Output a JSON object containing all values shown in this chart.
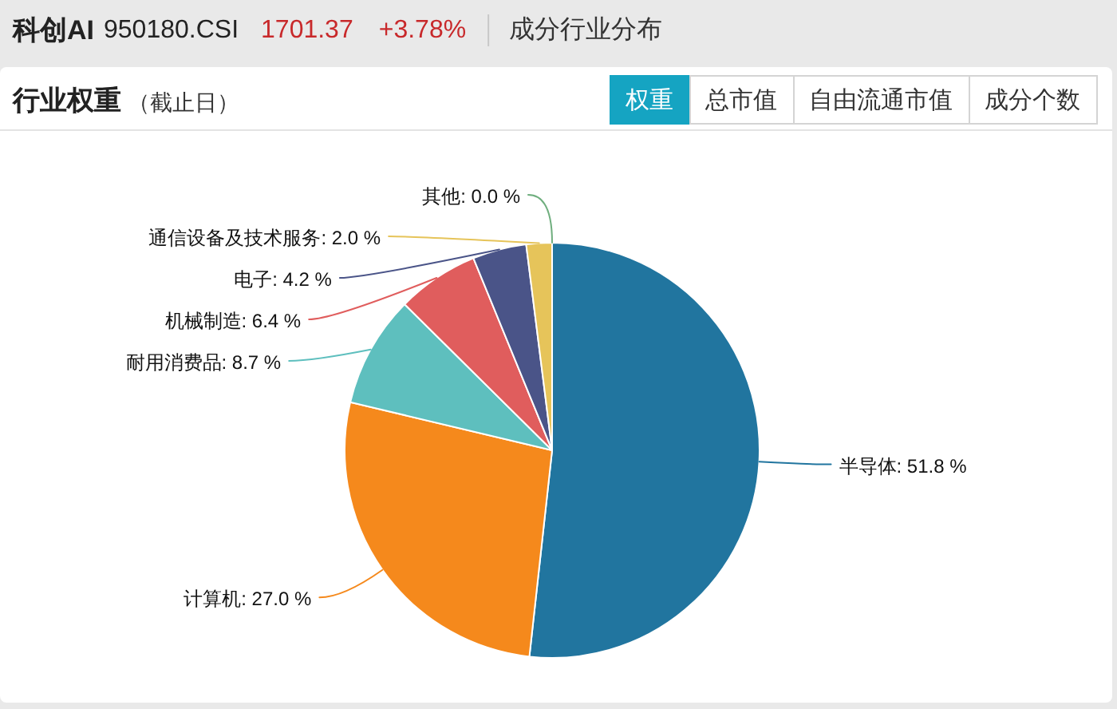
{
  "chart_data": {
    "type": "pie",
    "title": "行业权重",
    "subtitle": "（截止日）",
    "categories": [
      "半导体",
      "计算机",
      "耐用消费品",
      "机械制造",
      "电子",
      "通信设备及技术服务",
      "其他"
    ],
    "values": [
      51.8,
      27.0,
      8.7,
      6.4,
      4.2,
      2.0,
      0.0
    ],
    "colors": [
      "#21759f",
      "#f5891c",
      "#5ebfbe",
      "#e05d5d",
      "#4a5488",
      "#e6c45a",
      "#6fae7e"
    ],
    "value_labels": [
      ": 51.8 %",
      ": 27.0 %",
      ": 8.7 %",
      ": 6.4 %",
      ": 4.2 %",
      ": 2.0 %",
      ": 0.0 %"
    ],
    "annotations": [
      "科创AI",
      "950180.CSI",
      "1701.37",
      "+3.78%",
      "成分行业分布",
      "权重",
      "总市值",
      "自由流通市值",
      "成分个数"
    ]
  }
}
